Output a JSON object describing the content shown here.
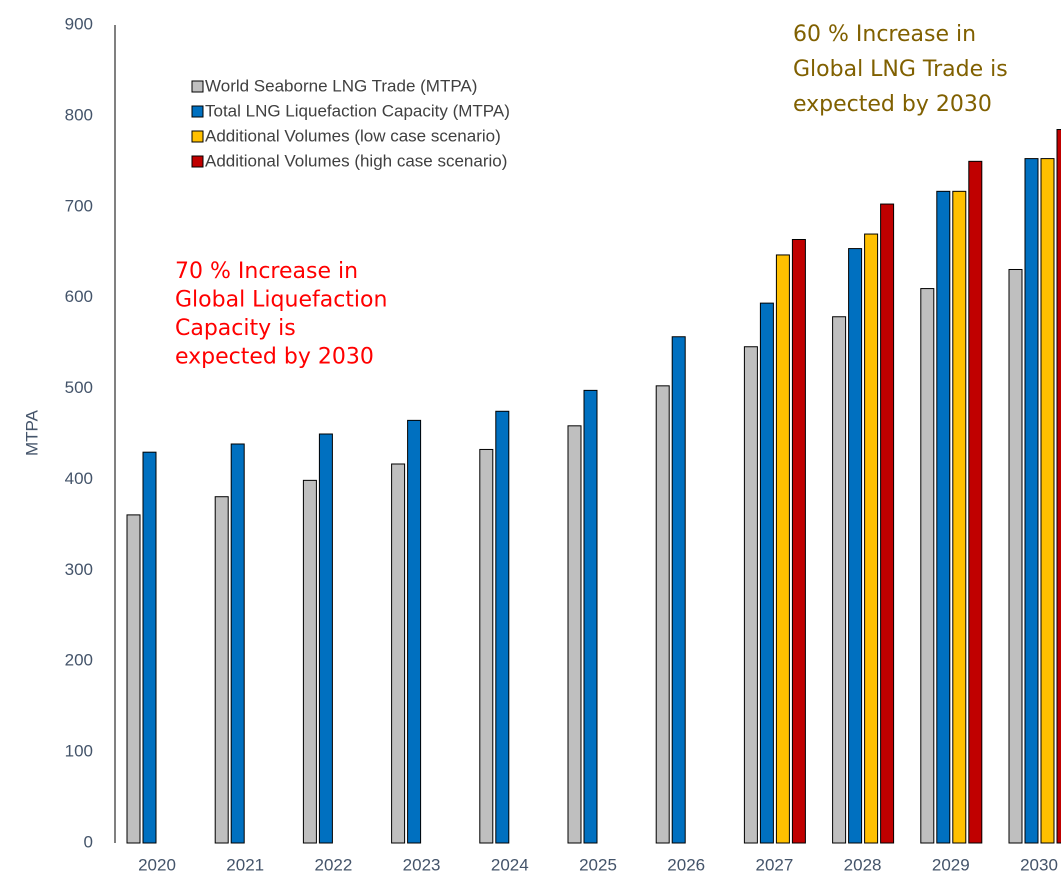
{
  "chart_data": {
    "type": "bar",
    "y_label": "MTPA",
    "categories": [
      "2020",
      "2021",
      "2022",
      "2023",
      "2024",
      "2025",
      "2026",
      "2027",
      "2028",
      "2029",
      "2030"
    ],
    "series": [
      {
        "name": "World Seaborne LNG Trade (MTPA)",
        "color": "#bfbfbf",
        "values": [
          361,
          381,
          399,
          417,
          433,
          459,
          503,
          546,
          579,
          610,
          631
        ]
      },
      {
        "name": "Total LNG Liquefaction Capacity (MTPA)",
        "color": "#0070c0",
        "values": [
          430,
          439,
          450,
          465,
          475,
          498,
          557,
          594,
          654,
          717,
          753
        ]
      },
      {
        "name": "Additional Volumes (low case scenario)",
        "color": "#ffc000",
        "values": [
          null,
          null,
          null,
          null,
          null,
          null,
          null,
          647,
          670,
          717,
          753
        ]
      },
      {
        "name": "Additional Volumes (high case scenario)",
        "color": "#c00000",
        "values": [
          null,
          null,
          null,
          null,
          null,
          null,
          null,
          664,
          703,
          750,
          785
        ]
      }
    ],
    "ylim": [
      0,
      900
    ],
    "yticks": [
      0,
      100,
      200,
      300,
      400,
      500,
      600,
      700,
      800,
      900
    ],
    "grid": false,
    "legend": "top-left",
    "annotations": [
      {
        "lines": [
          "70 % Increase in",
          "Global Liquefaction",
          "Capacity is",
          "expected by 2030"
        ],
        "color": "#ff0000"
      },
      {
        "lines": [
          "60 % Increase in",
          "Global LNG Trade is",
          "expected by 2030"
        ],
        "color": "#806000"
      }
    ]
  }
}
